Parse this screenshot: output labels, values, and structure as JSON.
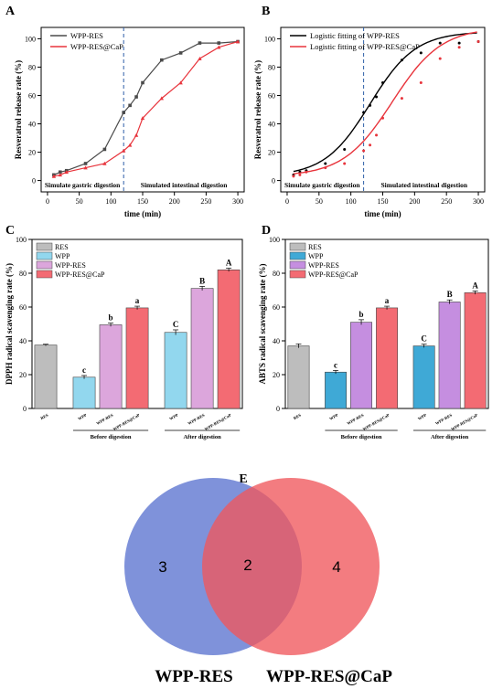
{
  "chart_data": [
    {
      "panel": "A",
      "type": "line",
      "xlabel": "time (min)",
      "ylabel": "Resveratrol release rate (%)",
      "xlim": [
        -10,
        310
      ],
      "ylim": [
        -8,
        108
      ],
      "xticks": [
        0,
        50,
        100,
        150,
        200,
        250,
        300
      ],
      "yticks": [
        0,
        20,
        40,
        60,
        80,
        100
      ],
      "divider_x": 120,
      "phase_labels": [
        "Simulate gastric digestion",
        "Simulated intestinal digestion"
      ],
      "legend_position": "top-left",
      "series": [
        {
          "name": "WPP-RES",
          "color": "#4a4a4a",
          "marker": "square",
          "x": [
            10,
            20,
            30,
            60,
            90,
            120,
            130,
            140,
            150,
            180,
            210,
            240,
            270,
            300
          ],
          "y": [
            4,
            6,
            7,
            12,
            22,
            48,
            53,
            59,
            69,
            85,
            90,
            97,
            97,
            98
          ]
        },
        {
          "name": "WPP-RES@CaP",
          "color": "#e8343c",
          "marker": "triangle",
          "x": [
            10,
            20,
            30,
            60,
            90,
            120,
            130,
            140,
            150,
            180,
            210,
            240,
            270,
            300
          ],
          "y": [
            3,
            4,
            6,
            9,
            12,
            21,
            25,
            32,
            44,
            58,
            69,
            86,
            94,
            98
          ]
        }
      ]
    },
    {
      "panel": "B",
      "type": "scatter",
      "xlabel": "time (min)",
      "ylabel": "Resveratrol release rate (%)",
      "xlim": [
        -10,
        310
      ],
      "ylim": [
        -8,
        108
      ],
      "xticks": [
        0,
        50,
        100,
        150,
        200,
        250,
        300
      ],
      "yticks": [
        0,
        20,
        40,
        60,
        80,
        100
      ],
      "divider_x": 120,
      "phase_labels": [
        "Simulate gastric digestion",
        "Simulated intestinal digestion"
      ],
      "legend_position": "top-left",
      "series": [
        {
          "name": "Logistic fitting of WPP-RES",
          "color": "#000000",
          "fit": {
            "top": 105,
            "bottom": 3,
            "x0": 130,
            "k": 0.028
          },
          "x": [
            10,
            20,
            30,
            60,
            90,
            120,
            130,
            140,
            150,
            180,
            210,
            240,
            270,
            300
          ],
          "y": [
            4,
            6,
            7,
            12,
            22,
            48,
            53,
            59,
            69,
            85,
            90,
            97,
            97,
            98
          ]
        },
        {
          "name": "Logistic fitting of WPP-RES@CaP",
          "color": "#e8343c",
          "fit": {
            "top": 108,
            "bottom": 3,
            "x0": 165,
            "k": 0.026
          },
          "x": [
            10,
            20,
            30,
            60,
            90,
            120,
            130,
            140,
            150,
            180,
            210,
            240,
            270,
            300
          ],
          "y": [
            3,
            4,
            6,
            9,
            12,
            21,
            25,
            32,
            44,
            58,
            69,
            86,
            94,
            98
          ]
        }
      ]
    },
    {
      "panel": "C",
      "type": "bar",
      "ylabel": "DPPH radical scavenging rate (%)",
      "ylim": [
        0,
        100
      ],
      "yticks": [
        0,
        20,
        40,
        60,
        80,
        100
      ],
      "groups": [
        "Before digestion",
        "After digestion"
      ],
      "legend_position": "top-left",
      "legend": [
        {
          "name": "RES",
          "color": "#bdbdbd"
        },
        {
          "name": "WPP",
          "color": "#92d7ee"
        },
        {
          "name": "WPP-RES",
          "color": "#dca6dc"
        },
        {
          "name": "WPP-RES@CaP",
          "color": "#f36b73"
        }
      ],
      "bars": [
        {
          "label": "RES",
          "value": 37.5,
          "error": 0.5,
          "color": "#bdbdbd",
          "letter": ""
        },
        {
          "label": "WPP",
          "value": 18.5,
          "error": 1.0,
          "color": "#92d7ee",
          "letter": "c"
        },
        {
          "label": "WPP-RES",
          "value": 49.5,
          "error": 1.0,
          "color": "#dca6dc",
          "letter": "b"
        },
        {
          "label": "WPP-RES@CaP",
          "value": 59.5,
          "error": 1.0,
          "color": "#f36b73",
          "letter": "a"
        },
        {
          "label": "WPP",
          "value": 45.0,
          "error": 1.5,
          "color": "#92d7ee",
          "letter": "C"
        },
        {
          "label": "WPP-RES",
          "value": 71.0,
          "error": 1.2,
          "color": "#dca6dc",
          "letter": "B"
        },
        {
          "label": "WPP-RES@CaP",
          "value": 82.0,
          "error": 1.0,
          "color": "#f36b73",
          "letter": "A"
        }
      ]
    },
    {
      "panel": "D",
      "type": "bar",
      "ylabel": "ABTS radical scavenging rate (%)",
      "ylim": [
        0,
        100
      ],
      "yticks": [
        0,
        20,
        40,
        60,
        80,
        100
      ],
      "groups": [
        "Before digestion",
        "After digestion"
      ],
      "legend_position": "top-left",
      "legend": [
        {
          "name": "RES",
          "color": "#bdbdbd"
        },
        {
          "name": "WPP",
          "color": "#3fa9d6"
        },
        {
          "name": "WPP-RES",
          "color": "#c58ee0"
        },
        {
          "name": "WPP-RES@CaP",
          "color": "#f36b73"
        }
      ],
      "bars": [
        {
          "label": "RES",
          "value": 37.0,
          "error": 1.2,
          "color": "#bdbdbd",
          "letter": ""
        },
        {
          "label": "WPP",
          "value": 21.5,
          "error": 1.0,
          "color": "#3fa9d6",
          "letter": "c"
        },
        {
          "label": "WPP-RES",
          "value": 51.0,
          "error": 1.5,
          "color": "#c58ee0",
          "letter": "b"
        },
        {
          "label": "WPP-RES@CaP",
          "value": 59.5,
          "error": 1.0,
          "color": "#f36b73",
          "letter": "a"
        },
        {
          "label": "WPP",
          "value": 37.0,
          "error": 1.0,
          "color": "#3fa9d6",
          "letter": "C"
        },
        {
          "label": "WPP-RES",
          "value": 63.0,
          "error": 1.2,
          "color": "#c58ee0",
          "letter": "B"
        },
        {
          "label": "WPP-RES@CaP",
          "value": 68.5,
          "error": 1.0,
          "color": "#f36b73",
          "letter": "A"
        }
      ]
    },
    {
      "panel": "E",
      "type": "venn",
      "sets": [
        {
          "name": "WPP-RES",
          "only": 3,
          "color": "#5b73cf"
        },
        {
          "name": "WPP-RES@CaP",
          "only": 4,
          "color": "#f0575c"
        }
      ],
      "overlap": 2
    }
  ]
}
